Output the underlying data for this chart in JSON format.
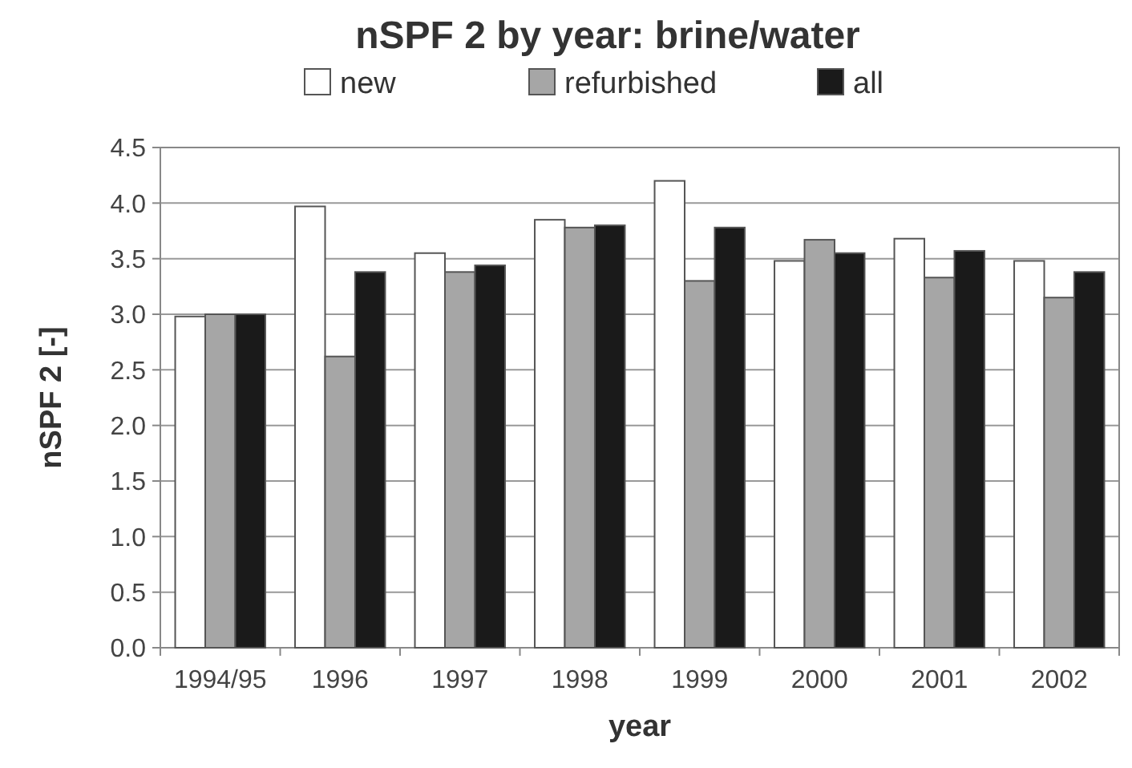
{
  "chart_data": {
    "type": "bar",
    "title": "nSPF 2 by year: brine/water",
    "xlabel": "year",
    "ylabel": "nSPF 2 [-]",
    "categories": [
      "1994/95",
      "1996",
      "1997",
      "1998",
      "1999",
      "2000",
      "2001",
      "2002"
    ],
    "series": [
      {
        "name": "new",
        "color": "#ffffff",
        "values": [
          2.98,
          3.97,
          3.55,
          3.85,
          4.2,
          3.48,
          3.68,
          3.48
        ]
      },
      {
        "name": "refurbished",
        "color": "#a6a6a6",
        "values": [
          3.0,
          2.62,
          3.38,
          3.78,
          3.3,
          3.67,
          3.33,
          3.15
        ]
      },
      {
        "name": "all",
        "color": "#1a1a1a",
        "values": [
          3.0,
          3.38,
          3.44,
          3.8,
          3.78,
          3.55,
          3.57,
          3.38
        ]
      }
    ],
    "ylim": [
      0,
      4.5
    ],
    "yticks": [
      {
        "value": 0,
        "label": "0.0"
      },
      {
        "value": 0.5,
        "label": "0.5"
      },
      {
        "value": 1,
        "label": "1.0"
      },
      {
        "value": 1.5,
        "label": "1.5"
      },
      {
        "value": 2,
        "label": "2.0"
      },
      {
        "value": 2.5,
        "label": "2.5"
      },
      {
        "value": 3,
        "label": "3.0"
      },
      {
        "value": 3.5,
        "label": "3.5"
      },
      {
        "value": 4,
        "label": "4.0"
      },
      {
        "value": 4.5,
        "label": "4.5"
      }
    ],
    "grid": "y",
    "legend": "top"
  }
}
